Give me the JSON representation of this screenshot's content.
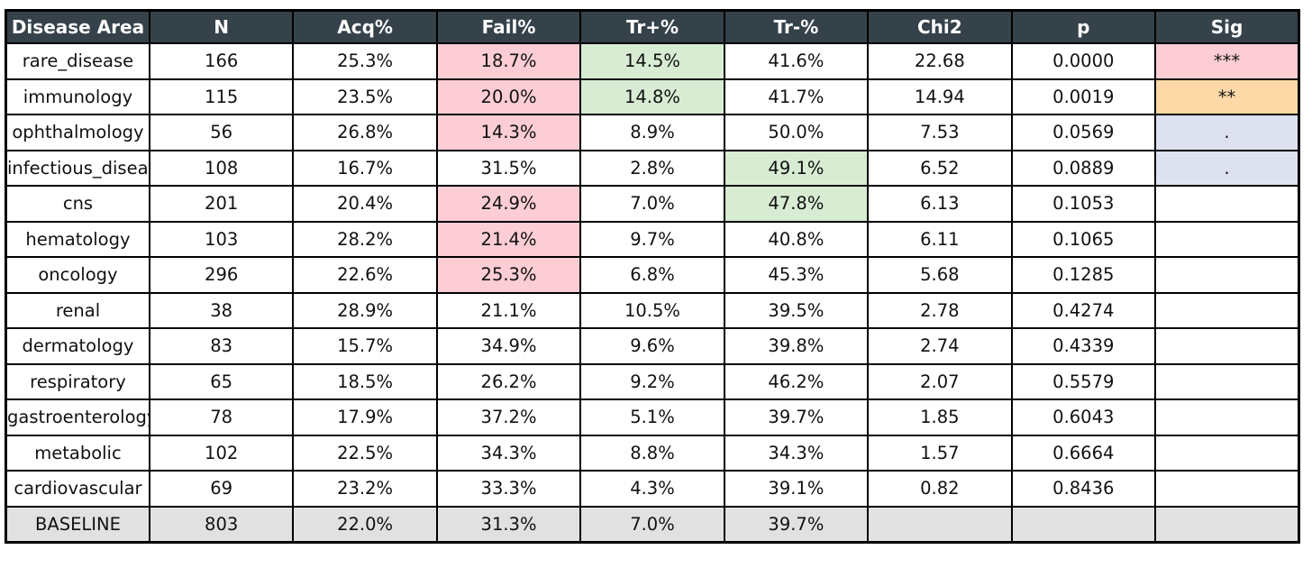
{
  "colors": {
    "header_bg": "#36424a",
    "header_text": "#ffffff",
    "border": "#000000",
    "highlight_pink": "#fccdd4",
    "highlight_green": "#d8ecd3",
    "highlight_orange": "#fcd9a6",
    "highlight_lavender": "#dee1ef",
    "baseline_gray": "#e1e1e1"
  },
  "chart_data": {
    "type": "table",
    "title": "",
    "columns": [
      "Disease Area",
      "N",
      "Acq%",
      "Fail%",
      "Tr+%",
      "Tr-%",
      "Chi2",
      "p",
      "Sig"
    ],
    "rows": [
      {
        "cells": [
          "rare_disease",
          "166",
          "25.3%",
          "18.7%",
          "14.5%",
          "41.6%",
          "22.68",
          "0.0000",
          "***"
        ],
        "styles": [
          null,
          null,
          null,
          "highlight_pink",
          "highlight_green",
          null,
          null,
          null,
          "highlight_pink"
        ]
      },
      {
        "cells": [
          "immunology",
          "115",
          "23.5%",
          "20.0%",
          "14.8%",
          "41.7%",
          "14.94",
          "0.0019",
          "**"
        ],
        "styles": [
          null,
          null,
          null,
          "highlight_pink",
          "highlight_green",
          null,
          null,
          null,
          "highlight_orange"
        ]
      },
      {
        "cells": [
          "ophthalmology",
          "56",
          "26.8%",
          "14.3%",
          "8.9%",
          "50.0%",
          "7.53",
          "0.0569",
          "."
        ],
        "styles": [
          null,
          null,
          null,
          "highlight_pink",
          null,
          null,
          null,
          null,
          "highlight_lavender"
        ]
      },
      {
        "cells": [
          "infectious_disease",
          "108",
          "16.7%",
          "31.5%",
          "2.8%",
          "49.1%",
          "6.52",
          "0.0889",
          "."
        ],
        "styles": [
          null,
          null,
          null,
          null,
          null,
          "highlight_green",
          null,
          null,
          "highlight_lavender"
        ]
      },
      {
        "cells": [
          "cns",
          "201",
          "20.4%",
          "24.9%",
          "7.0%",
          "47.8%",
          "6.13",
          "0.1053",
          ""
        ],
        "styles": [
          null,
          null,
          null,
          "highlight_pink",
          null,
          "highlight_green",
          null,
          null,
          null
        ]
      },
      {
        "cells": [
          "hematology",
          "103",
          "28.2%",
          "21.4%",
          "9.7%",
          "40.8%",
          "6.11",
          "0.1065",
          ""
        ],
        "styles": [
          null,
          null,
          null,
          "highlight_pink",
          null,
          null,
          null,
          null,
          null
        ]
      },
      {
        "cells": [
          "oncology",
          "296",
          "22.6%",
          "25.3%",
          "6.8%",
          "45.3%",
          "5.68",
          "0.1285",
          ""
        ],
        "styles": [
          null,
          null,
          null,
          "highlight_pink",
          null,
          null,
          null,
          null,
          null
        ]
      },
      {
        "cells": [
          "renal",
          "38",
          "28.9%",
          "21.1%",
          "10.5%",
          "39.5%",
          "2.78",
          "0.4274",
          ""
        ],
        "styles": [
          null,
          null,
          null,
          null,
          null,
          null,
          null,
          null,
          null
        ]
      },
      {
        "cells": [
          "dermatology",
          "83",
          "15.7%",
          "34.9%",
          "9.6%",
          "39.8%",
          "2.74",
          "0.4339",
          ""
        ],
        "styles": [
          null,
          null,
          null,
          null,
          null,
          null,
          null,
          null,
          null
        ]
      },
      {
        "cells": [
          "respiratory",
          "65",
          "18.5%",
          "26.2%",
          "9.2%",
          "46.2%",
          "2.07",
          "0.5579",
          ""
        ],
        "styles": [
          null,
          null,
          null,
          null,
          null,
          null,
          null,
          null,
          null
        ]
      },
      {
        "cells": [
          "gastroenterology",
          "78",
          "17.9%",
          "37.2%",
          "5.1%",
          "39.7%",
          "1.85",
          "0.6043",
          ""
        ],
        "styles": [
          null,
          null,
          null,
          null,
          null,
          null,
          null,
          null,
          null
        ]
      },
      {
        "cells": [
          "metabolic",
          "102",
          "22.5%",
          "34.3%",
          "8.8%",
          "34.3%",
          "1.57",
          "0.6664",
          ""
        ],
        "styles": [
          null,
          null,
          null,
          null,
          null,
          null,
          null,
          null,
          null
        ]
      },
      {
        "cells": [
          "cardiovascular",
          "69",
          "23.2%",
          "33.3%",
          "4.3%",
          "39.1%",
          "0.82",
          "0.8436",
          ""
        ],
        "styles": [
          null,
          null,
          null,
          null,
          null,
          null,
          null,
          null,
          null
        ]
      },
      {
        "cells": [
          "BASELINE",
          "803",
          "22.0%",
          "31.3%",
          "7.0%",
          "39.7%",
          "",
          "",
          ""
        ],
        "styles": [
          "baseline_gray",
          "baseline_gray",
          "baseline_gray",
          "baseline_gray",
          "baseline_gray",
          "baseline_gray",
          "baseline_gray",
          "baseline_gray",
          "baseline_gray"
        ]
      }
    ]
  }
}
